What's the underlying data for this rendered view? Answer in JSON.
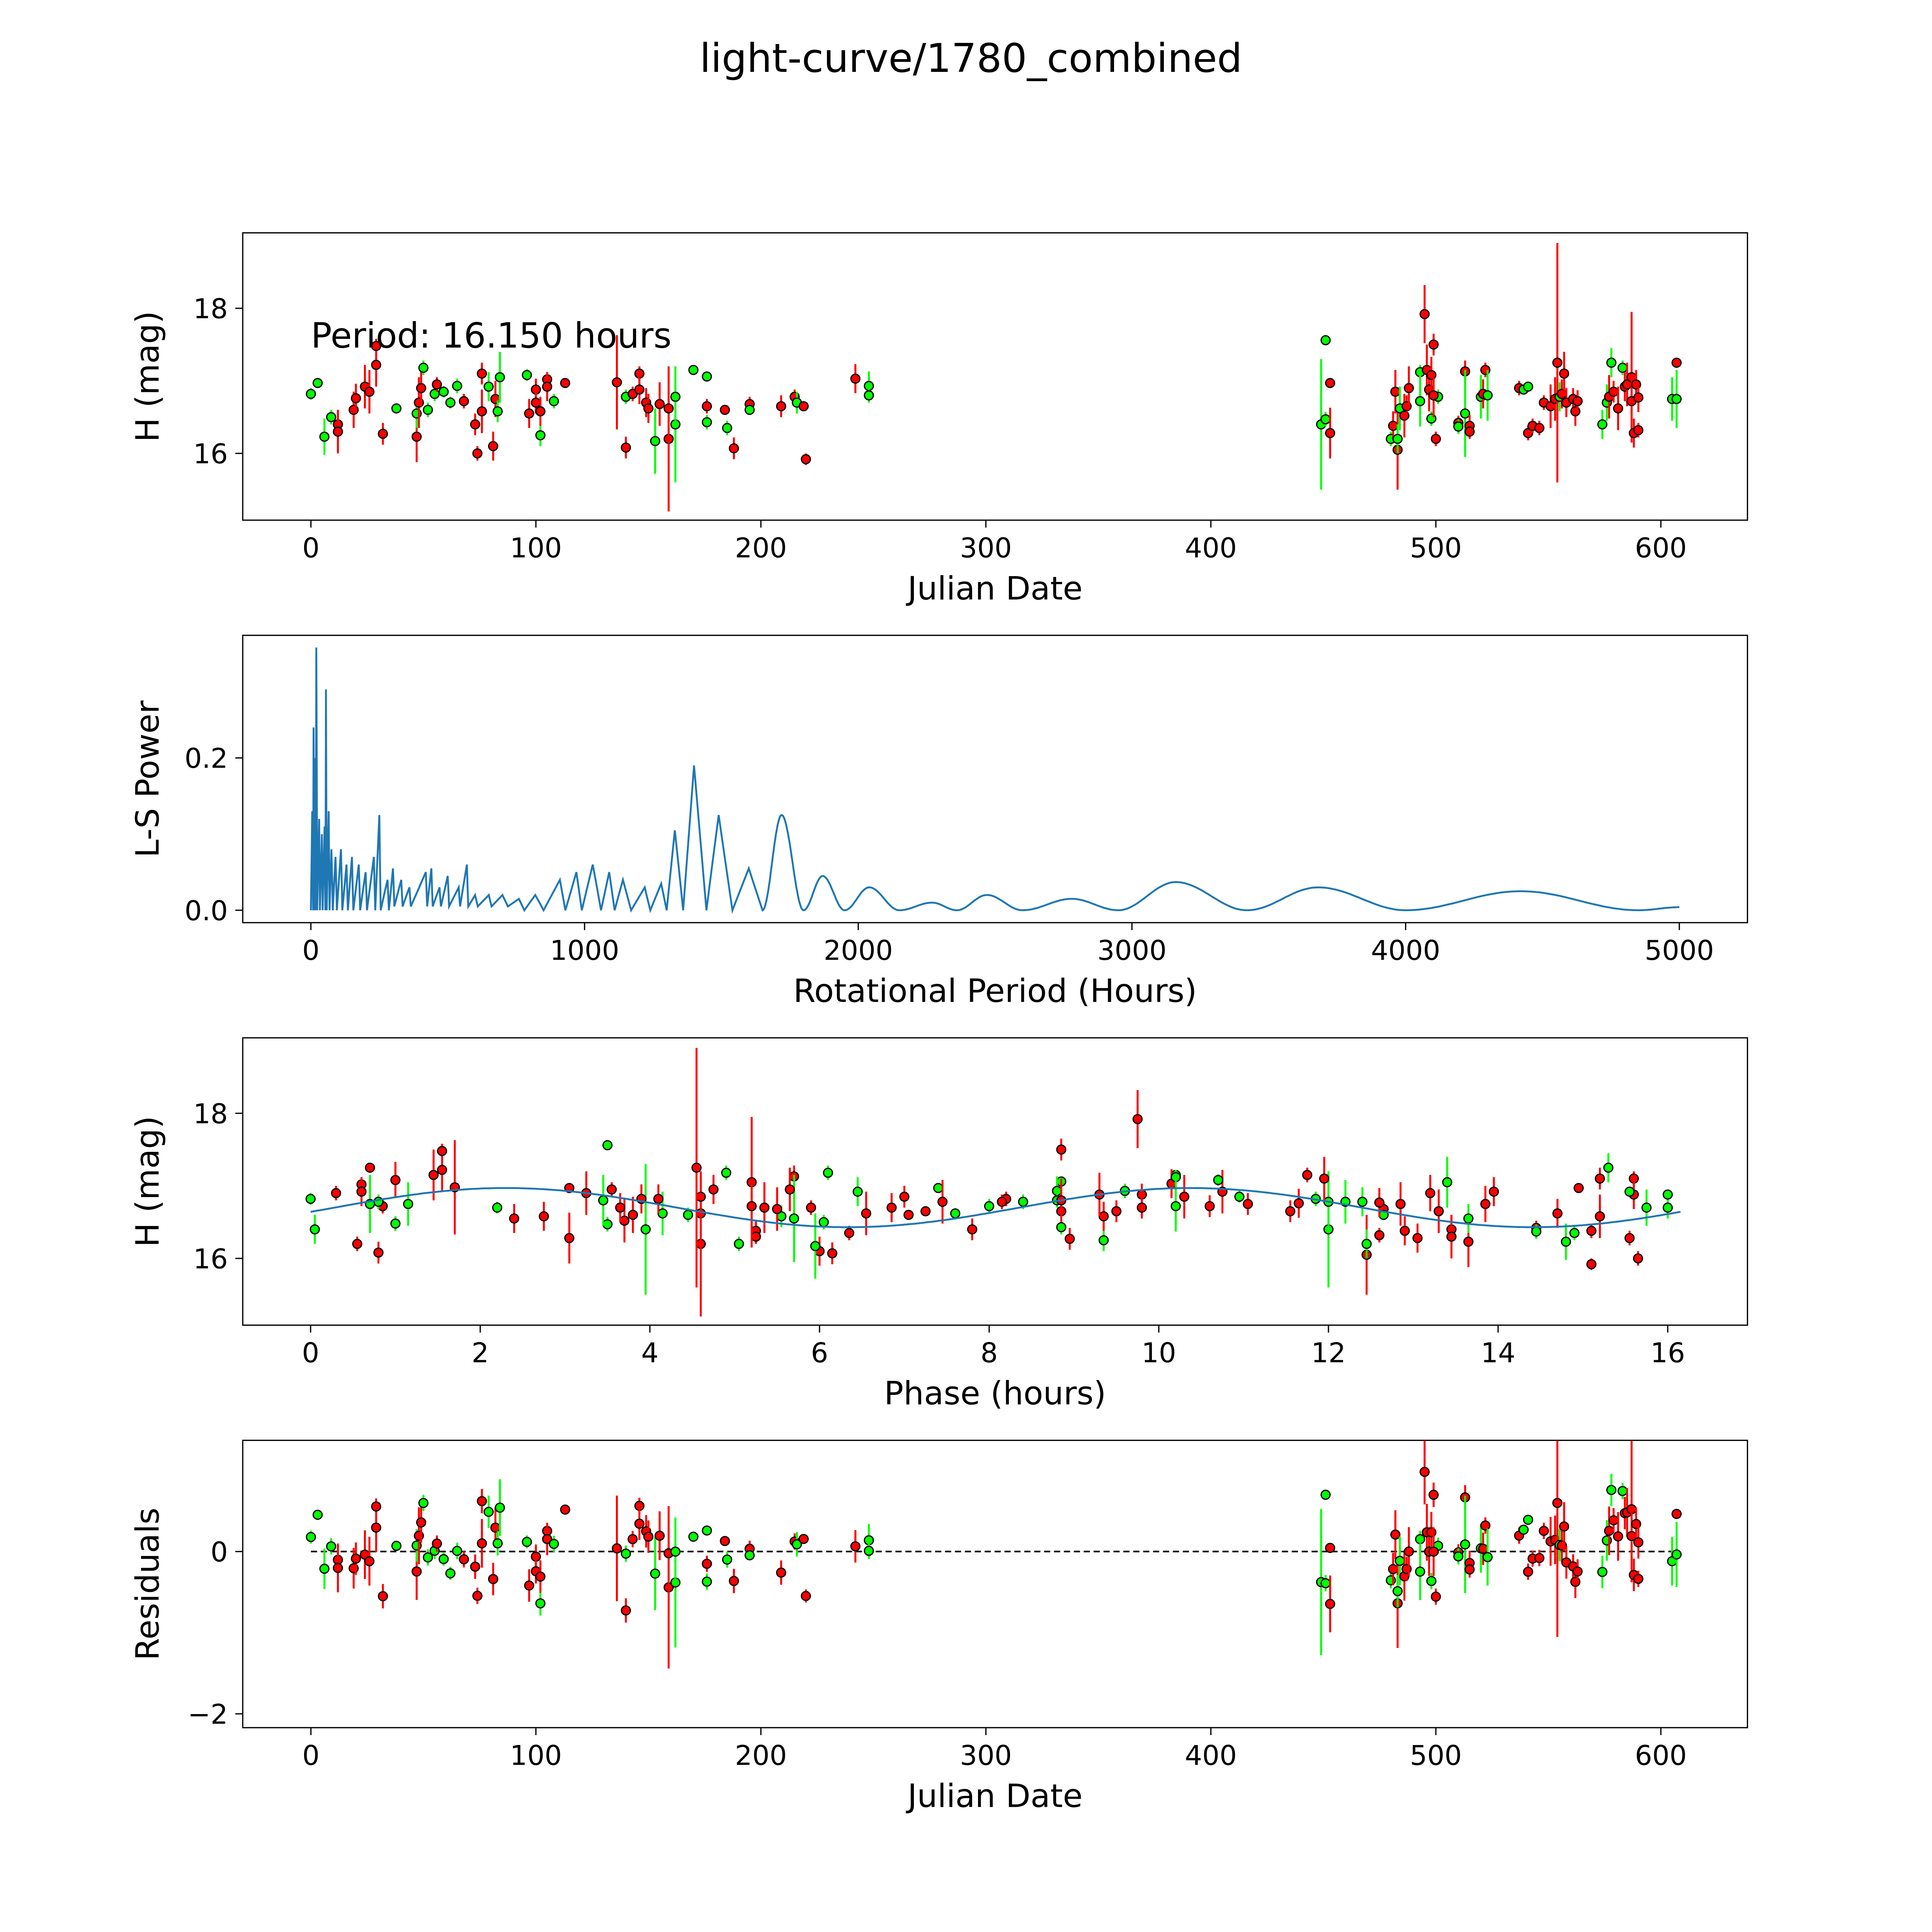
{
  "chart_data": {
    "title": "light-curve/1780_combined",
    "colors": {
      "green": "#00ff00",
      "red": "#ff0000",
      "edge": "#000000",
      "line": "#1f77b4"
    },
    "points_columns": [
      "julian_date",
      "H_mag",
      "error",
      "color"
    ],
    "points": [
      [
        0,
        16.82,
        0.08,
        "g"
      ],
      [
        3,
        16.97,
        0.06,
        "g"
      ],
      [
        6,
        16.23,
        0.25,
        "g"
      ],
      [
        9,
        16.5,
        0.1,
        "g"
      ],
      [
        12,
        16.4,
        0.2,
        "r"
      ],
      [
        12,
        16.3,
        0.3,
        "r"
      ],
      [
        19,
        16.6,
        0.25,
        "r"
      ],
      [
        20,
        16.76,
        0.2,
        "r"
      ],
      [
        24,
        16.92,
        0.3,
        "r"
      ],
      [
        26,
        16.85,
        0.3,
        "r"
      ],
      [
        29,
        17.22,
        0.3,
        "r"
      ],
      [
        29,
        17.48,
        0.1,
        "r"
      ],
      [
        32,
        16.27,
        0.15,
        "r"
      ],
      [
        38,
        16.62,
        0.05,
        "g"
      ],
      [
        47,
        16.23,
        0.35,
        "r"
      ],
      [
        47,
        16.55,
        0.2,
        "g"
      ],
      [
        48,
        16.7,
        0.35,
        "r"
      ],
      [
        49,
        16.9,
        0.25,
        "r"
      ],
      [
        50,
        17.18,
        0.1,
        "g"
      ],
      [
        52,
        16.6,
        0.1,
        "g"
      ],
      [
        55,
        16.82,
        0.1,
        "g"
      ],
      [
        56,
        16.95,
        0.1,
        "r"
      ],
      [
        59,
        16.85,
        0.08,
        "g"
      ],
      [
        62,
        16.7,
        0.08,
        "g"
      ],
      [
        65,
        16.93,
        0.1,
        "g"
      ],
      [
        68,
        16.72,
        0.1,
        "r"
      ],
      [
        73,
        16.4,
        0.15,
        "r"
      ],
      [
        74,
        16.0,
        0.1,
        "r"
      ],
      [
        76,
        17.1,
        0.15,
        "r"
      ],
      [
        76,
        16.58,
        0.3,
        "r"
      ],
      [
        79,
        16.92,
        0.2,
        "g"
      ],
      [
        81,
        16.1,
        0.2,
        "r"
      ],
      [
        81,
        16.1,
        0.05,
        "r"
      ],
      [
        82,
        16.75,
        0.25,
        "r"
      ],
      [
        83,
        16.58,
        0.15,
        "g"
      ],
      [
        84,
        17.05,
        0.35,
        "g"
      ],
      [
        96,
        17.08,
        0.08,
        "g"
      ],
      [
        97,
        16.55,
        0.2,
        "r"
      ],
      [
        100,
        16.88,
        0.15,
        "r"
      ],
      [
        100,
        16.7,
        0.15,
        "r"
      ],
      [
        102,
        16.25,
        0.15,
        "g"
      ],
      [
        102,
        16.58,
        0.2,
        "r"
      ],
      [
        105,
        17.02,
        0.1,
        "r"
      ],
      [
        105,
        16.92,
        0.2,
        "r"
      ],
      [
        108,
        16.72,
        0.1,
        "g"
      ],
      [
        113,
        16.97,
        0.05,
        "r"
      ],
      [
        136,
        16.98,
        0.65,
        "r"
      ],
      [
        140,
        16.08,
        0.15,
        "r"
      ],
      [
        140,
        16.78,
        0.1,
        "g"
      ],
      [
        143,
        16.82,
        0.1,
        "r"
      ],
      [
        146,
        17.1,
        0.1,
        "r"
      ],
      [
        146,
        16.88,
        0.2,
        "r"
      ],
      [
        149,
        16.7,
        0.2,
        "r"
      ],
      [
        150,
        16.62,
        0.2,
        "r"
      ],
      [
        153,
        16.17,
        0.45,
        "g"
      ],
      [
        155,
        16.68,
        0.3,
        "r"
      ],
      [
        159,
        16.2,
        1.0,
        "r"
      ],
      [
        159,
        16.62,
        0.5,
        "r"
      ],
      [
        162,
        16.4,
        0.8,
        "g"
      ],
      [
        162,
        16.78,
        0.4,
        "g"
      ],
      [
        170,
        17.15,
        0.05,
        "g"
      ],
      [
        176,
        17.06,
        0.05,
        "g"
      ],
      [
        176,
        16.65,
        0.1,
        "r"
      ],
      [
        176,
        16.43,
        0.1,
        "g"
      ],
      [
        184,
        16.6,
        0.05,
        "r"
      ],
      [
        185,
        16.35,
        0.1,
        "g"
      ],
      [
        188,
        16.07,
        0.15,
        "r"
      ],
      [
        195,
        16.68,
        0.1,
        "r"
      ],
      [
        195,
        16.6,
        0.05,
        "g"
      ],
      [
        209,
        16.65,
        0.15,
        "r"
      ],
      [
        215,
        16.78,
        0.1,
        "r"
      ],
      [
        216,
        16.7,
        0.15,
        "g"
      ],
      [
        219,
        16.65,
        0.05,
        "r"
      ],
      [
        220,
        15.92,
        0.08,
        "r"
      ],
      [
        242,
        17.03,
        0.2,
        "r"
      ],
      [
        248,
        16.93,
        0.2,
        "g"
      ],
      [
        248,
        16.8,
        0.1,
        "g"
      ],
      [
        449,
        16.4,
        0.9,
        "g"
      ],
      [
        451,
        17.56,
        0.05,
        "g"
      ],
      [
        451,
        16.47,
        0.1,
        "g"
      ],
      [
        453,
        16.97,
        0.05,
        "r"
      ],
      [
        453,
        16.28,
        0.35,
        "r"
      ],
      [
        480,
        16.2,
        0.1,
        "g"
      ],
      [
        481,
        16.38,
        0.2,
        "r"
      ],
      [
        482,
        16.85,
        0.3,
        "r"
      ],
      [
        483,
        16.05,
        0.55,
        "r"
      ],
      [
        483,
        16.2,
        0.2,
        "g"
      ],
      [
        484,
        16.62,
        0.3,
        "g"
      ],
      [
        486,
        16.52,
        0.3,
        "r"
      ],
      [
        487,
        16.65,
        0.15,
        "r"
      ],
      [
        488,
        16.9,
        0.3,
        "r"
      ],
      [
        493,
        17.12,
        0.1,
        "g"
      ],
      [
        493,
        16.72,
        0.35,
        "g"
      ],
      [
        495,
        17.92,
        0.4,
        "r"
      ],
      [
        496,
        17.15,
        0.35,
        "r"
      ],
      [
        497,
        16.88,
        0.3,
        "r"
      ],
      [
        498,
        17.08,
        0.25,
        "r"
      ],
      [
        498,
        16.48,
        0.1,
        "g"
      ],
      [
        499,
        17.5,
        0.15,
        "r"
      ],
      [
        500,
        16.2,
        0.1,
        "r"
      ],
      [
        501,
        16.78,
        0.1,
        "g"
      ],
      [
        499,
        16.8,
        0.3,
        "r"
      ],
      [
        510,
        16.42,
        0.1,
        "r"
      ],
      [
        510,
        16.37,
        0.1,
        "g"
      ],
      [
        513,
        17.13,
        0.15,
        "r"
      ],
      [
        513,
        16.55,
        0.6,
        "g"
      ],
      [
        515,
        16.38,
        0.15,
        "r"
      ],
      [
        515,
        16.3,
        0.1,
        "r"
      ],
      [
        520,
        16.78,
        0.3,
        "g"
      ],
      [
        521,
        16.82,
        0.2,
        "r"
      ],
      [
        522,
        17.15,
        0.1,
        "r"
      ],
      [
        523,
        16.8,
        0.35,
        "g"
      ],
      [
        537,
        16.9,
        0.1,
        "r"
      ],
      [
        539,
        16.88,
        0.05,
        "g"
      ],
      [
        541,
        16.92,
        0.05,
        "g"
      ],
      [
        541,
        16.28,
        0.1,
        "r"
      ],
      [
        543,
        16.38,
        0.1,
        "r"
      ],
      [
        546,
        16.35,
        0.1,
        "r"
      ],
      [
        548,
        16.7,
        0.1,
        "r"
      ],
      [
        551,
        16.65,
        0.3,
        "r"
      ],
      [
        553,
        16.75,
        0.3,
        "r"
      ],
      [
        554,
        17.25,
        1.65,
        "r"
      ],
      [
        555,
        16.78,
        0.2,
        "g"
      ],
      [
        556,
        16.82,
        0.2,
        "r"
      ],
      [
        557,
        17.1,
        0.3,
        "r"
      ],
      [
        558,
        16.7,
        0.2,
        "r"
      ],
      [
        561,
        16.75,
        0.15,
        "r"
      ],
      [
        562,
        16.58,
        0.2,
        "r"
      ],
      [
        563,
        16.72,
        0.15,
        "r"
      ],
      [
        574,
        16.4,
        0.2,
        "g"
      ],
      [
        576,
        16.7,
        0.25,
        "g"
      ],
      [
        577,
        16.78,
        0.3,
        "r"
      ],
      [
        578,
        17.25,
        0.2,
        "g"
      ],
      [
        579,
        16.85,
        0.15,
        "r"
      ],
      [
        581,
        16.62,
        0.3,
        "r"
      ],
      [
        583,
        17.18,
        0.1,
        "g"
      ],
      [
        584,
        16.92,
        0.2,
        "r"
      ],
      [
        585,
        16.95,
        0.3,
        "r"
      ],
      [
        587,
        17.05,
        0.9,
        "r"
      ],
      [
        587,
        16.72,
        0.3,
        "r"
      ],
      [
        588,
        16.28,
        0.2,
        "r"
      ],
      [
        589,
        16.95,
        0.2,
        "r"
      ],
      [
        590,
        16.32,
        0.1,
        "r"
      ],
      [
        590,
        16.77,
        0.2,
        "r"
      ],
      [
        605,
        16.75,
        0.3,
        "g"
      ],
      [
        607,
        17.25,
        0.05,
        "r"
      ],
      [
        607,
        16.75,
        0.4,
        "g"
      ]
    ],
    "fit": {
      "period_hours": 16.15,
      "mean": 16.7,
      "amplitude": 0.27,
      "peak_phase": 2.3,
      "harmonic": 2
    },
    "panels": [
      {
        "type": "scatter",
        "xlabel": "Julian Date",
        "ylabel": "H (mag)",
        "xlim": [
          -30.3,
          638.5
        ],
        "ylim": [
          15.08,
          19.04
        ],
        "xticks": [
          0,
          100,
          200,
          300,
          400,
          500,
          600
        ],
        "yticks": [
          16,
          18
        ],
        "annotation": "Period: 16.150 hours"
      },
      {
        "type": "line",
        "xlabel": "Rotational Period (Hours)",
        "ylabel": "L-S Power",
        "xlim": [
          -249,
          5249
        ],
        "ylim": [
          -0.0163,
          0.361
        ],
        "xticks": [
          0,
          1000,
          2000,
          3000,
          4000,
          5000
        ],
        "yticks": [
          0.0,
          0.2
        ],
        "ytick_labels": [
          "0.0",
          "0.2"
        ],
        "periodogram": [
          [
            0,
            0
          ],
          [
            5,
            0.13
          ],
          [
            8,
            0
          ],
          [
            10,
            0.24
          ],
          [
            12,
            0
          ],
          [
            15,
            0.2
          ],
          [
            18,
            0
          ],
          [
            20,
            0.345
          ],
          [
            23,
            0
          ],
          [
            30,
            0.12
          ],
          [
            33,
            0
          ],
          [
            40,
            0.1
          ],
          [
            43,
            0
          ],
          [
            50,
            0.11
          ],
          [
            53,
            0
          ],
          [
            55,
            0.29
          ],
          [
            58,
            0
          ],
          [
            65,
            0.13
          ],
          [
            68,
            0
          ],
          [
            75,
            0.08
          ],
          [
            80,
            0
          ],
          [
            90,
            0.07
          ],
          [
            95,
            0
          ],
          [
            110,
            0.08
          ],
          [
            115,
            0
          ],
          [
            130,
            0.06
          ],
          [
            135,
            0
          ],
          [
            150,
            0.07
          ],
          [
            155,
            0
          ],
          [
            175,
            0.06
          ],
          [
            180,
            0
          ],
          [
            200,
            0.05
          ],
          [
            205,
            0
          ],
          [
            230,
            0.07
          ],
          [
            235,
            0
          ],
          [
            250,
            0.125
          ],
          [
            255,
            0
          ],
          [
            280,
            0.04
          ],
          [
            285,
            0
          ],
          [
            300,
            0.055
          ],
          [
            305,
            0.005
          ],
          [
            330,
            0.04
          ],
          [
            335,
            0.005
          ],
          [
            360,
            0.03
          ],
          [
            365,
            0.005
          ],
          [
            420,
            0.05
          ],
          [
            425,
            0.005
          ],
          [
            440,
            0.055
          ],
          [
            445,
            0.005
          ],
          [
            470,
            0.03
          ],
          [
            475,
            0.005
          ],
          [
            500,
            0.045
          ],
          [
            505,
            0.005
          ],
          [
            540,
            0.03
          ],
          [
            545,
            0.005
          ],
          [
            570,
            0.06
          ],
          [
            575,
            0.005
          ],
          [
            600,
            0.02
          ],
          [
            610,
            0.005
          ],
          [
            650,
            0.02
          ],
          [
            660,
            0.005
          ],
          [
            700,
            0.02
          ],
          [
            720,
            0.005
          ],
          [
            760,
            0.015
          ],
          [
            780,
            0
          ],
          [
            820,
            0.02
          ],
          [
            850,
            0
          ],
          [
            910,
            0.04
          ],
          [
            930,
            0
          ],
          [
            970,
            0.05
          ],
          [
            990,
            0
          ],
          [
            1030,
            0.06
          ],
          [
            1060,
            0
          ],
          [
            1090,
            0.05
          ],
          [
            1110,
            0
          ],
          [
            1140,
            0.04
          ],
          [
            1170,
            0
          ],
          [
            1220,
            0.03
          ],
          [
            1240,
            0
          ],
          [
            1280,
            0.035
          ],
          [
            1300,
            0
          ],
          [
            1330,
            0.105
          ],
          [
            1360,
            0
          ],
          [
            1400,
            0.19
          ],
          [
            1445,
            0
          ],
          [
            1490,
            0.125
          ],
          [
            1540,
            0
          ],
          [
            1600,
            0.055
          ],
          [
            1650,
            0
          ],
          [
            1720,
            0.125
          ],
          [
            1800,
            0
          ],
          [
            1870,
            0.045
          ],
          [
            1950,
            0
          ],
          [
            2040,
            0.03
          ],
          [
            2150,
            0
          ],
          [
            2270,
            0.01
          ],
          [
            2360,
            0
          ],
          [
            2470,
            0.02
          ],
          [
            2600,
            0
          ],
          [
            2780,
            0.015
          ],
          [
            2950,
            0
          ],
          [
            3160,
            0.037
          ],
          [
            3420,
            0
          ],
          [
            3680,
            0.03
          ],
          [
            4000,
            0
          ],
          [
            4420,
            0.025
          ],
          [
            4850,
            0
          ],
          [
            5000,
            0.004
          ]
        ]
      },
      {
        "type": "scatter",
        "xlabel": "Phase (hours)",
        "ylabel": "H (mag)",
        "xlim": [
          -0.8,
          16.94
        ],
        "ylim": [
          15.08,
          19.04
        ],
        "xticks": [
          0,
          2,
          4,
          6,
          8,
          10,
          12,
          14,
          16
        ],
        "yticks": [
          16,
          18
        ]
      },
      {
        "type": "scatter",
        "xlabel": "Julian Date",
        "ylabel": "Residuals",
        "xlim": [
          -30.3,
          638.5
        ],
        "ylim": [
          -2.17,
          1.37
        ],
        "xticks": [
          0,
          100,
          200,
          300,
          400,
          500,
          600
        ],
        "yticks": [
          -2,
          0
        ],
        "ytick_labels": [
          "−2",
          "0"
        ]
      }
    ]
  }
}
